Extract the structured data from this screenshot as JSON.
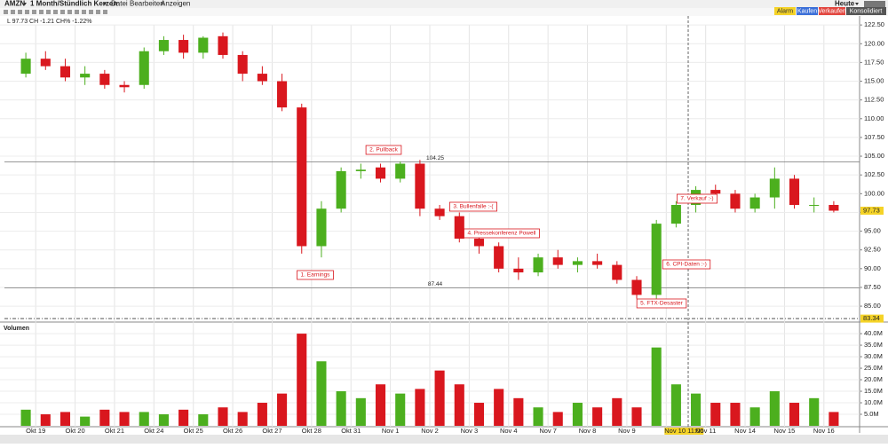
{
  "toolbar": {
    "symbol": "AMZN",
    "interval": "1 Month/Stündlich Kerzen",
    "menus": [
      "Datei",
      "Bearbeiten",
      "Anzeigen"
    ],
    "range": "Heute",
    "buttons": [
      "Alarm",
      "Kaufen",
      "Verkaufen",
      "Konsolidiert"
    ]
  },
  "info": "L 97.73 CH -1.21 CH% -1.22%",
  "chart_data": [
    {
      "type": "candlestick",
      "categories": [
        "Okt 19",
        null,
        "Okt 20",
        null,
        "Okt 21",
        null,
        "Okt 24",
        null,
        "Okt 25",
        null,
        "Okt 26",
        null,
        "Okt 27",
        null,
        "Okt 28",
        null,
        "Okt 31",
        null,
        "Nov 1",
        null,
        "Nov 2",
        null,
        "Nov 3",
        null,
        "Nov 4",
        null,
        "Nov 7",
        null,
        "Nov 8",
        null,
        "Nov 9",
        null,
        "Nov 10 11:00",
        null,
        "Nov 11",
        null,
        "Nov 14",
        null,
        "Nov 15",
        null,
        "Nov 16",
        null
      ],
      "open": [
        116,
        118,
        117,
        115.5,
        116,
        114.5,
        114.5,
        119,
        120.5,
        118.8,
        121,
        118.5,
        116,
        115,
        111.5,
        93,
        98,
        103,
        103.5,
        102,
        104,
        98,
        97,
        94,
        93,
        90,
        89.5,
        91.5,
        90.5,
        91,
        90.5,
        88.5,
        86.5,
        96,
        98.5,
        100.5,
        100,
        98,
        99.5,
        102,
        98.5,
        98.5
      ],
      "high": [
        118.8,
        119,
        118,
        117,
        116.5,
        115,
        119.5,
        121,
        121.2,
        121,
        121.5,
        119,
        117,
        116,
        112,
        99,
        103.5,
        104,
        104,
        104.3,
        104.5,
        98.5,
        97.5,
        95,
        93.5,
        91.5,
        92,
        92.5,
        91.5,
        92,
        91,
        89,
        96.5,
        99,
        101,
        101.2,
        100.5,
        100,
        103.5,
        102.5,
        99.5,
        99
      ],
      "low": [
        115.5,
        116.5,
        115,
        114.5,
        114,
        113.5,
        114,
        118.5,
        118,
        118,
        118,
        115,
        114.5,
        111,
        92,
        91.5,
        97.5,
        102,
        101.5,
        101.5,
        97,
        96.5,
        93.5,
        92,
        89.5,
        88.5,
        89,
        90,
        89.5,
        90,
        88,
        86,
        86,
        95.5,
        97.5,
        99,
        97.5,
        97.5,
        98,
        98,
        97.5,
        97.5
      ],
      "close": [
        118,
        117,
        115.5,
        116,
        114.5,
        114.2,
        119,
        120.5,
        118.8,
        120.8,
        118.5,
        116,
        115,
        111.5,
        93,
        98,
        103,
        103.2,
        102,
        104,
        98,
        97,
        94,
        93,
        90,
        89.5,
        91.5,
        90.5,
        91,
        90.5,
        88.5,
        86.5,
        96,
        98.5,
        100.5,
        100,
        98,
        99.5,
        102,
        98.5,
        98.5,
        97.73
      ],
      "up_color": "#4caf1e",
      "down_color": "#d9171e",
      "ylim": [
        83,
        123.7
      ],
      "yticks": [
        {
          "value": 85,
          "label": "85.00"
        },
        {
          "value": 87.5,
          "label": "87.50"
        },
        {
          "value": 90,
          "label": "90.00"
        },
        {
          "value": 92.5,
          "label": "92.50"
        },
        {
          "value": 95,
          "label": "95.00"
        },
        {
          "value": 97.5,
          "label": "97.50"
        },
        {
          "value": 100,
          "label": "100.00"
        },
        {
          "value": 102.5,
          "label": "102.50"
        },
        {
          "value": 105,
          "label": "105.00"
        },
        {
          "value": 107.5,
          "label": "107.50"
        },
        {
          "value": 110,
          "label": "110.00"
        },
        {
          "value": 112.5,
          "label": "112.50"
        },
        {
          "value": 115,
          "label": "115.00"
        },
        {
          "value": 117.5,
          "label": "117.50"
        },
        {
          "value": 120,
          "label": "120.00"
        },
        {
          "value": 122.5,
          "label": "122.50"
        }
      ],
      "hlines": [
        104.25,
        87.44
      ],
      "dashed_line": 83.34,
      "annotations": [
        "1. Earnings",
        "2. Pullback",
        "3. Bullenfalle :-(",
        "4. Pressekonferenz Powell",
        "5. FTX-Desaster",
        "6. CPI-Daten :-)",
        "7. Verkauf :-)"
      ],
      "grid": true
    },
    {
      "type": "bar",
      "title": "Volumen",
      "values": [
        7,
        5,
        6,
        4,
        7,
        6,
        6,
        5,
        7,
        5,
        8,
        6,
        10,
        14,
        40,
        28,
        15,
        12,
        18,
        14,
        16,
        24,
        18,
        10,
        16,
        12,
        8,
        6,
        10,
        8,
        12,
        8,
        34,
        18,
        14,
        10,
        10,
        8,
        15,
        10,
        12,
        6
      ],
      "ylim": [
        0,
        43.5
      ],
      "yticks": [
        {
          "value": 5,
          "label": "5.0M"
        },
        {
          "value": 10,
          "label": "10.0M"
        },
        {
          "value": 15,
          "label": "15.0M"
        },
        {
          "value": 20,
          "label": "20.0M"
        },
        {
          "value": 25,
          "label": "25.0M"
        },
        {
          "value": 30,
          "label": "30.0M"
        },
        {
          "value": 35,
          "label": "35.0M"
        },
        {
          "value": 40,
          "label": "40.0M"
        }
      ],
      "grid": true
    }
  ]
}
